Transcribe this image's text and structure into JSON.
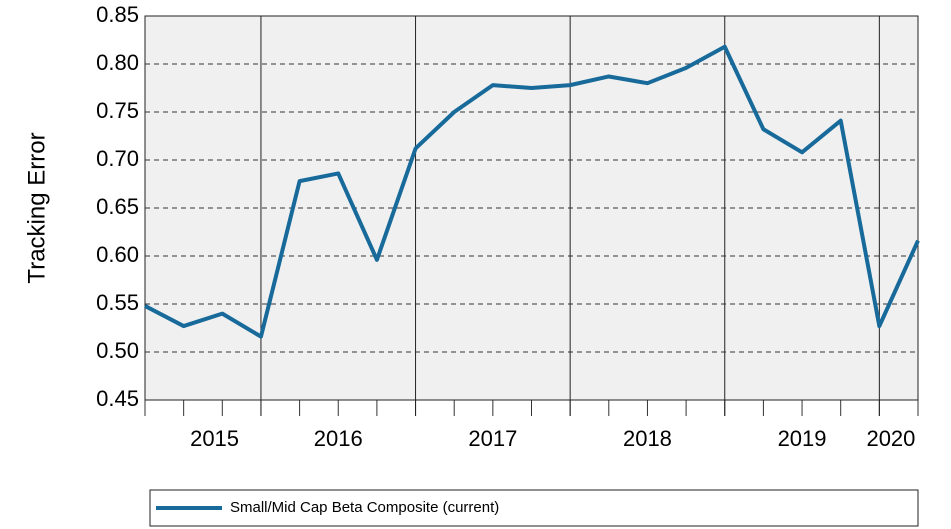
{
  "chart_data": {
    "type": "line",
    "y_label": "Tracking Error",
    "categories": [
      null,
      null,
      null,
      null,
      null,
      null,
      null,
      null,
      null,
      null,
      null,
      null,
      null,
      null,
      null,
      null,
      null,
      null,
      null,
      null,
      null
    ],
    "series": [
      {
        "name": "Small/Mid Cap Beta Composite (current)",
        "color": "#176a9a",
        "values": [
          0.548,
          0.527,
          0.54,
          0.516,
          0.678,
          0.686,
          0.596,
          0.712,
          0.75,
          0.778,
          0.775,
          0.778,
          0.787,
          0.78,
          0.796,
          0.818,
          0.732,
          0.708,
          0.741,
          0.527,
          0.616
        ]
      }
    ],
    "ylim": [
      0.45,
      0.85
    ],
    "yticks": [
      {
        "value": 0.45,
        "label": "0.45"
      },
      {
        "value": 0.5,
        "label": "0.50"
      },
      {
        "value": 0.55,
        "label": "0.55"
      },
      {
        "value": 0.6,
        "label": "0.60"
      },
      {
        "value": 0.65,
        "label": "0.65"
      },
      {
        "value": 0.7,
        "label": "0.70"
      },
      {
        "value": 0.75,
        "label": "0.75"
      },
      {
        "value": 0.8,
        "label": "0.80"
      },
      {
        "value": 0.85,
        "label": "0.85"
      }
    ],
    "xticks": [
      {
        "value": 1.8,
        "label": "2015"
      },
      {
        "value": 5,
        "label": "2016"
      },
      {
        "value": 9,
        "label": "2017"
      },
      {
        "value": 13,
        "label": "2018"
      },
      {
        "value": 17,
        "label": "2019"
      },
      {
        "value": 19.3,
        "label": "2020"
      }
    ],
    "xgrid": [
      3,
      7,
      11,
      15,
      19
    ],
    "grid": true,
    "legend": "bottom"
  }
}
